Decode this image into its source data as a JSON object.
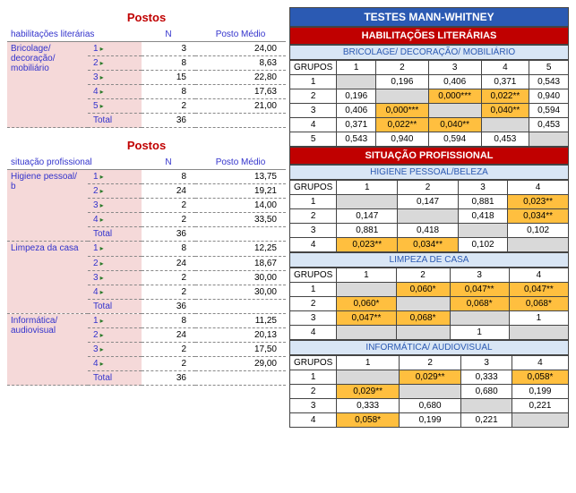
{
  "left": {
    "title": "Postos",
    "col_n": "N",
    "col_pm": "Posto Médio",
    "tables": [
      {
        "header": "habilitações literárias",
        "cat": "Bricolage/ decoração/ mobiliário",
        "rows": [
          {
            "g": "1",
            "n": "3",
            "pm": "24,00"
          },
          {
            "g": "2",
            "n": "8",
            "pm": "8,63"
          },
          {
            "g": "3",
            "n": "15",
            "pm": "22,80"
          },
          {
            "g": "4",
            "n": "8",
            "pm": "17,63"
          },
          {
            "g": "5",
            "n": "2",
            "pm": "21,00"
          }
        ],
        "total_label": "Total",
        "total_n": "36"
      },
      {
        "header": "situação profissional",
        "cat": "Higiene pessoal/ b",
        "rows": [
          {
            "g": "1",
            "n": "8",
            "pm": "13,75"
          },
          {
            "g": "2",
            "n": "24",
            "pm": "19,21"
          },
          {
            "g": "3",
            "n": "2",
            "pm": "14,00"
          },
          {
            "g": "4",
            "n": "2",
            "pm": "33,50"
          }
        ],
        "total_label": "Total",
        "total_n": "36"
      },
      {
        "header": "",
        "cat": "Limpeza da casa",
        "rows": [
          {
            "g": "1",
            "n": "8",
            "pm": "12,25"
          },
          {
            "g": "2",
            "n": "24",
            "pm": "18,67"
          },
          {
            "g": "3",
            "n": "2",
            "pm": "30,00"
          },
          {
            "g": "4",
            "n": "2",
            "pm": "30,00"
          }
        ],
        "total_label": "Total",
        "total_n": "36"
      },
      {
        "header": "",
        "cat": "Informática/ audiovisual",
        "rows": [
          {
            "g": "1",
            "n": "8",
            "pm": "11,25"
          },
          {
            "g": "2",
            "n": "24",
            "pm": "20,13"
          },
          {
            "g": "3",
            "n": "2",
            "pm": "17,50"
          },
          {
            "g": "4",
            "n": "2",
            "pm": "29,00"
          }
        ],
        "total_label": "Total",
        "total_n": "36"
      }
    ]
  },
  "right": {
    "main_title": "TESTES MANN-WHITNEY",
    "grupos": "GRUPOS",
    "sections": [
      {
        "red": "HABILITAÇÕES LITERÁRIAS",
        "blue": "BRICOLAGE/ DECORAÇÃO/ MOBILIÁRIO",
        "cols": [
          "1",
          "2",
          "3",
          "4",
          "5"
        ],
        "rows": [
          {
            "h": "1",
            "cells": [
              {
                "v": "",
                "d": true
              },
              {
                "v": "0,196"
              },
              {
                "v": "0,406"
              },
              {
                "v": "0,371"
              },
              {
                "v": "0,543"
              }
            ]
          },
          {
            "h": "2",
            "cells": [
              {
                "v": "0,196"
              },
              {
                "v": "",
                "d": true
              },
              {
                "v": "0,000***",
                "hl": true
              },
              {
                "v": "0,022**",
                "hl": true
              },
              {
                "v": "0,940"
              }
            ]
          },
          {
            "h": "3",
            "cells": [
              {
                "v": "0,406"
              },
              {
                "v": "0,000***",
                "hl": true
              },
              {
                "v": "",
                "d": true
              },
              {
                "v": "0,040**",
                "hl": true
              },
              {
                "v": "0,594"
              }
            ]
          },
          {
            "h": "4",
            "cells": [
              {
                "v": "0,371"
              },
              {
                "v": "0,022**",
                "hl": true
              },
              {
                "v": "0,040**",
                "hl": true
              },
              {
                "v": "",
                "d": true
              },
              {
                "v": "0,453"
              }
            ]
          },
          {
            "h": "5",
            "cells": [
              {
                "v": "0,543"
              },
              {
                "v": "0,940"
              },
              {
                "v": "0,594"
              },
              {
                "v": "0,453"
              },
              {
                "v": "",
                "d": true
              }
            ]
          }
        ]
      },
      {
        "red": "SITUAÇÃO PROFISSIONAL",
        "blue": "HIGIENE PESSOAL/BELEZA",
        "cols": [
          "1",
          "2",
          "3",
          "4"
        ],
        "rows": [
          {
            "h": "1",
            "cells": [
              {
                "v": "",
                "d": true
              },
              {
                "v": "0,147"
              },
              {
                "v": "0,881"
              },
              {
                "v": "0,023**",
                "hl": true
              }
            ]
          },
          {
            "h": "2",
            "cells": [
              {
                "v": "0,147"
              },
              {
                "v": "",
                "d": true
              },
              {
                "v": "0,418"
              },
              {
                "v": "0,034**",
                "hl": true
              }
            ]
          },
          {
            "h": "3",
            "cells": [
              {
                "v": "0,881"
              },
              {
                "v": "0,418"
              },
              {
                "v": "",
                "d": true
              },
              {
                "v": "0,102"
              }
            ]
          },
          {
            "h": "4",
            "cells": [
              {
                "v": "0,023**",
                "hl": true
              },
              {
                "v": "0,034**",
                "hl": true
              },
              {
                "v": "0,102"
              },
              {
                "v": "",
                "d": true
              }
            ]
          }
        ]
      },
      {
        "blue": "LIMPEZA DE CASA",
        "cols": [
          "1",
          "2",
          "3",
          "4"
        ],
        "rows": [
          {
            "h": "1",
            "cells": [
              {
                "v": "",
                "d": true
              },
              {
                "v": "0,060*",
                "hl": true
              },
              {
                "v": "0,047**",
                "hl": true
              },
              {
                "v": "0,047**",
                "hl": true
              }
            ]
          },
          {
            "h": "2",
            "cells": [
              {
                "v": "0,060*",
                "hl": true
              },
              {
                "v": "",
                "d": true
              },
              {
                "v": "0,068*",
                "hl": true
              },
              {
                "v": "0,068*",
                "hl": true
              }
            ]
          },
          {
            "h": "3",
            "cells": [
              {
                "v": "0,047**",
                "hl": true
              },
              {
                "v": "0,068*",
                "hl": true
              },
              {
                "v": "",
                "d": true
              },
              {
                "v": "1"
              }
            ]
          },
          {
            "h": "4",
            "cells": [
              {
                "v": "",
                "g": true
              },
              {
                "v": "",
                "g": true
              },
              {
                "v": "1"
              },
              {
                "v": "",
                "d": true
              }
            ]
          }
        ]
      },
      {
        "blue": "INFORMÁTICA/ AUDIOVISUAL",
        "cols": [
          "1",
          "2",
          "3",
          "4"
        ],
        "rows": [
          {
            "h": "1",
            "cells": [
              {
                "v": "",
                "d": true
              },
              {
                "v": "0,029**",
                "hl": true
              },
              {
                "v": "0,333"
              },
              {
                "v": "0,058*",
                "hl": true
              }
            ]
          },
          {
            "h": "2",
            "cells": [
              {
                "v": "0,029**",
                "hl": true
              },
              {
                "v": "",
                "d": true
              },
              {
                "v": "0,680"
              },
              {
                "v": "0,199"
              }
            ]
          },
          {
            "h": "3",
            "cells": [
              {
                "v": "0,333"
              },
              {
                "v": "0,680"
              },
              {
                "v": "",
                "d": true
              },
              {
                "v": "0,221"
              }
            ]
          },
          {
            "h": "4",
            "cells": [
              {
                "v": "0,058*",
                "hl": true
              },
              {
                "v": "0,199"
              },
              {
                "v": "0,221"
              },
              {
                "v": "",
                "d": true
              }
            ]
          }
        ]
      }
    ]
  }
}
